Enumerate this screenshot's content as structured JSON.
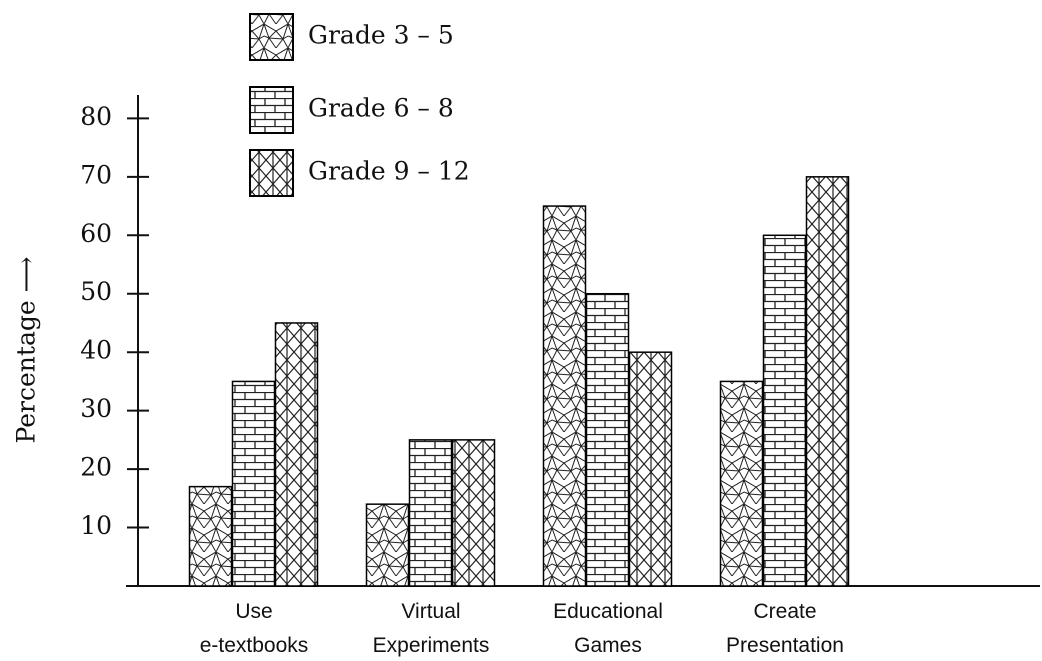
{
  "chart_data": {
    "type": "bar",
    "y_label": "Percentage ⟶",
    "categories": [
      "Use e-textbooks",
      "Virtual Experiments",
      "Educational Games",
      "Create Presentation"
    ],
    "series": [
      {
        "name": "Grade 3 – 5",
        "color": "#000000",
        "pattern": "triangles",
        "values": [
          17,
          14,
          65,
          35
        ]
      },
      {
        "name": "Grade 6 – 8",
        "color": "#000000",
        "pattern": "bricks",
        "values": [
          35,
          25,
          50,
          60
        ]
      },
      {
        "name": "Grade 9 – 12",
        "color": "#000000",
        "pattern": "crosshatch",
        "values": [
          45,
          25,
          40,
          70
        ]
      }
    ],
    "ylim": [
      0,
      84
    ],
    "yticks": [
      10,
      20,
      30,
      40,
      50,
      60,
      70,
      80
    ],
    "grid": false,
    "legend": "top-left"
  }
}
